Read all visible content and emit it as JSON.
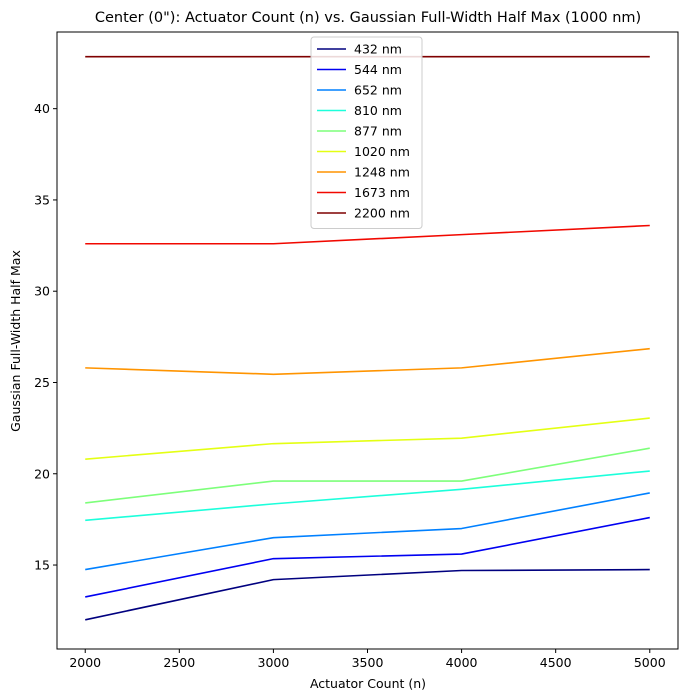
{
  "chart_data": {
    "type": "line",
    "title": "Center (0\"): Actuator Count (n) vs. Gaussian Full-Width Half Max (1000 nm)",
    "xlabel": "Actuator Count (n)",
    "ylabel": "Gaussian Full-Width Half Max",
    "x": [
      2000,
      3000,
      4000,
      5000
    ],
    "xlim": [
      1850,
      5150
    ],
    "ylim": [
      10.4,
      44.2
    ],
    "xticks": [
      2000,
      2500,
      3000,
      3500,
      4000,
      4500,
      5000
    ],
    "yticks": [
      15,
      20,
      25,
      30,
      35,
      40
    ],
    "grid": false,
    "legend_position": "top-center",
    "series": [
      {
        "name": "432 nm",
        "color": "#00007f",
        "values": [
          12.0,
          14.2,
          14.7,
          14.75
        ]
      },
      {
        "name": "544 nm",
        "color": "#0000f1",
        "values": [
          13.25,
          15.35,
          15.6,
          17.6
        ]
      },
      {
        "name": "652 nm",
        "color": "#0080ff",
        "values": [
          14.75,
          16.5,
          17.0,
          18.95
        ]
      },
      {
        "name": "810 nm",
        "color": "#1cffdb",
        "values": [
          17.45,
          18.35,
          19.15,
          20.15
        ]
      },
      {
        "name": "877 nm",
        "color": "#7dff7a",
        "values": [
          18.4,
          19.6,
          19.6,
          21.4
        ]
      },
      {
        "name": "1020 nm",
        "color": "#e4ff13",
        "values": [
          20.8,
          21.65,
          21.95,
          23.05
        ]
      },
      {
        "name": "1248 nm",
        "color": "#ff9400",
        "values": [
          25.8,
          25.45,
          25.8,
          26.85
        ]
      },
      {
        "name": "1673 nm",
        "color": "#f10800",
        "values": [
          32.6,
          32.6,
          33.1,
          33.6
        ]
      },
      {
        "name": "2200 nm",
        "color": "#7f0000",
        "values": [
          42.85,
          42.85,
          42.85,
          42.85
        ]
      }
    ]
  }
}
